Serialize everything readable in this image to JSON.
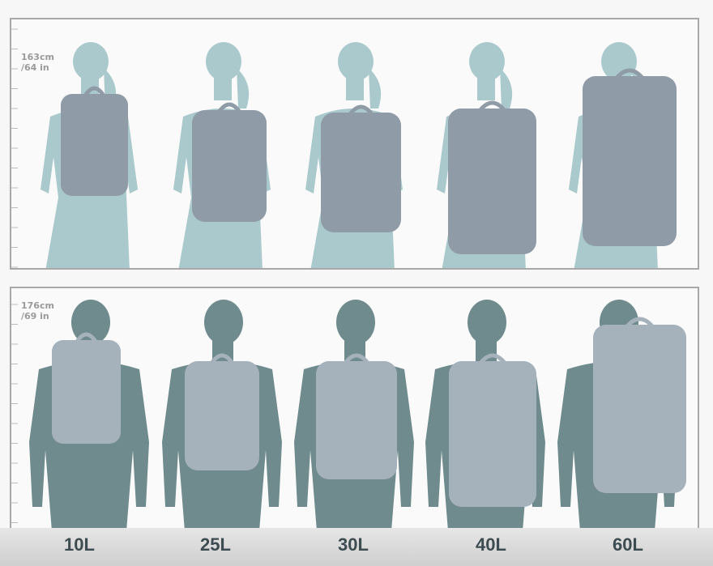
{
  "rows": [
    {
      "height_label_cm": "163cm",
      "height_label_in": "/64 in",
      "figure": "woman",
      "body_color": "#a9c9cc",
      "pack_color": "#8f9ba7"
    },
    {
      "height_label_cm": "176cm",
      "height_label_in": "/69 in",
      "figure": "man",
      "body_color": "#6f8b8d",
      "pack_color": "#a5b1bb"
    }
  ],
  "capacities": [
    "10L",
    "25L",
    "30L",
    "40L",
    "60L"
  ]
}
